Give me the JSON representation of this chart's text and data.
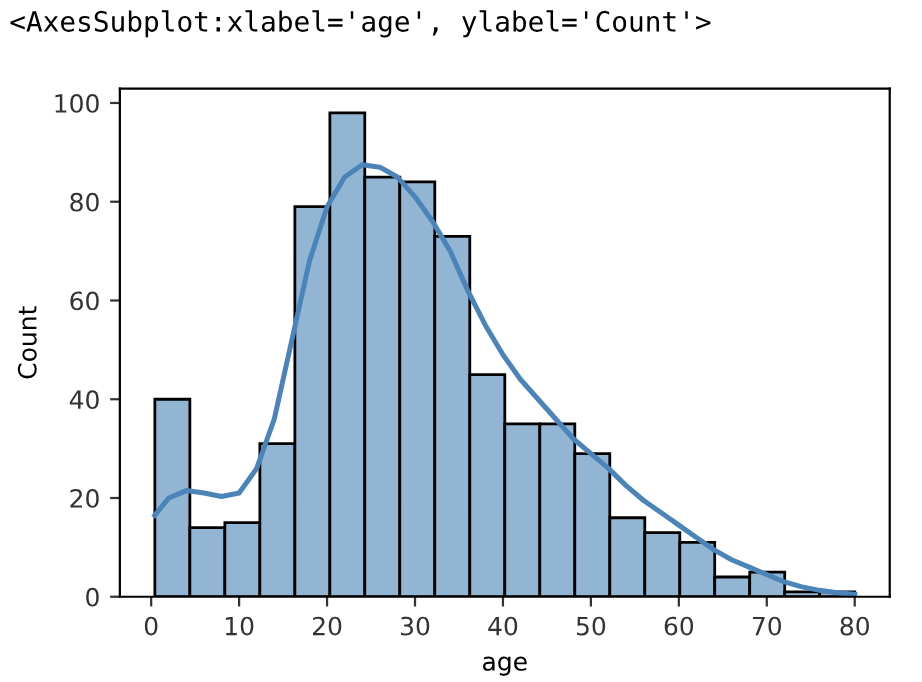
{
  "chart_data": {
    "type": "histogram",
    "xlabel": "age",
    "ylabel": "Count",
    "annotations": [
      "<AxesSubplot:xlabel='age', ylabel='Count'>"
    ],
    "xlim": [
      -3.56,
      83.98
    ],
    "ylim": [
      0,
      102.9
    ],
    "xticks": [
      0,
      10,
      20,
      30,
      40,
      50,
      60,
      70,
      80
    ],
    "yticks": [
      0,
      20,
      40,
      60,
      80,
      100
    ],
    "series": [
      {
        "type": "histogram",
        "color": "#93b5d4",
        "bins": [
          0.42,
          4.4,
          8.38,
          12.36,
          16.34,
          20.32,
          24.29,
          28.27,
          32.25,
          36.23,
          40.21,
          44.19,
          48.17,
          52.15,
          56.13,
          60.11,
          64.08,
          68.06,
          72.04,
          76.02,
          80.0
        ],
        "values": [
          40,
          14,
          15,
          31,
          79,
          98,
          85,
          84,
          73,
          45,
          35,
          35,
          29,
          16,
          13,
          11,
          4,
          5,
          1,
          1
        ]
      },
      {
        "type": "line",
        "color": "#4a84b8",
        "x": [
          0.42,
          2,
          4,
          6,
          8,
          10,
          12,
          14,
          16,
          18,
          20,
          22,
          24,
          26,
          28,
          30,
          32,
          34,
          36,
          38,
          40,
          42,
          44,
          46,
          48,
          50,
          52,
          54,
          56,
          58,
          60,
          62,
          64,
          66,
          68,
          70,
          72,
          74,
          76,
          78,
          80
        ],
        "values": [
          16.5,
          20,
          21.5,
          21,
          20.3,
          21,
          26,
          36,
          52,
          68,
          79,
          85,
          87.5,
          87,
          85,
          81,
          76,
          70,
          62,
          55,
          49,
          44,
          40,
          36,
          32,
          29,
          26,
          22.5,
          19.5,
          17,
          14.5,
          12,
          9.5,
          7.5,
          6,
          4.5,
          3,
          2,
          1.3,
          0.8,
          0.5
        ]
      }
    ]
  }
}
